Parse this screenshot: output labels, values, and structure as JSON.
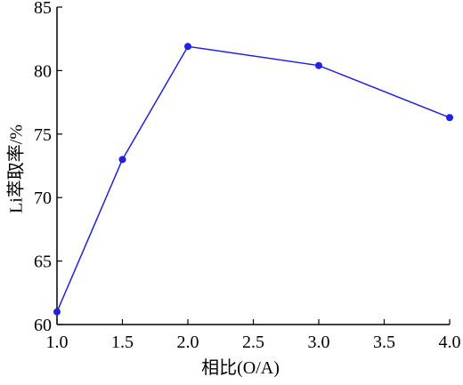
{
  "chart_data": {
    "type": "line",
    "x": [
      1.0,
      1.5,
      2.0,
      3.0,
      4.0
    ],
    "values": [
      61.0,
      73.0,
      81.9,
      80.4,
      76.3
    ],
    "color": "#2020e8",
    "xlabel": "相比(O/A)",
    "ylabel": "Li萃取率/%",
    "xlim": [
      1.0,
      4.0
    ],
    "xticks": [
      {
        "value": 1.0,
        "label": "1.0"
      },
      {
        "value": 1.5,
        "label": "1.5"
      },
      {
        "value": 2.0,
        "label": "2.0"
      },
      {
        "value": 2.5,
        "label": "2.5"
      },
      {
        "value": 3.0,
        "label": "3.0"
      },
      {
        "value": 3.5,
        "label": "3.5"
      },
      {
        "value": 4.0,
        "label": "4.0"
      }
    ],
    "ylim": [
      60,
      85
    ],
    "yticks": [
      60,
      65,
      70,
      75,
      80,
      85
    ]
  }
}
